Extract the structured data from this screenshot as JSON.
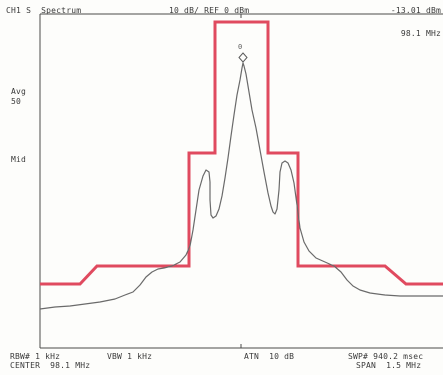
{
  "header": {
    "channel_title": "CH1 S  Spectrum",
    "scale_ref": "10 dB/ REF 0 dBm",
    "marker_level": "-13.01 dBm"
  },
  "marker": {
    "frequency": "98.1 MHz",
    "number": "0",
    "symbol": "diamond-marker"
  },
  "side_labels": {
    "avg_label": "Avg",
    "avg_value": "50",
    "mid_label": "Mid"
  },
  "footer": {
    "rbw": "RBW# 1 kHz",
    "vbw": "VBW 1 kHz",
    "atn": "ATN  10 dB",
    "swp": "SWP# 940.2 msec",
    "center": "CENTER  98.1 MHz",
    "span": "SPAN  1.5 MHz"
  },
  "colors": {
    "mask": "#e04a5f",
    "trace": "#6a6a6a",
    "grid": "#505050"
  }
}
